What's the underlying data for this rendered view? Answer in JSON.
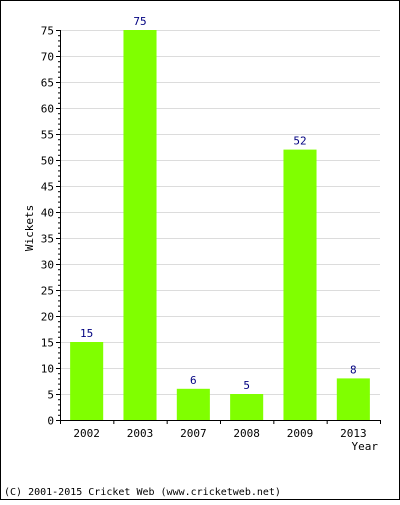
{
  "chart_data": {
    "type": "bar",
    "categories": [
      "2002",
      "2003",
      "2007",
      "2008",
      "2009",
      "2013"
    ],
    "values": [
      15,
      75,
      6,
      5,
      52,
      8
    ],
    "title": "",
    "xlabel": "Year",
    "ylabel": "Wickets",
    "ylim": [
      0,
      75
    ],
    "ytick_step": 5,
    "grid": true,
    "legend": "none",
    "bar_color": "#80ff00",
    "label_color": "#000080"
  },
  "footer": {
    "copyright": "(C) 2001-2015 Cricket Web (www.cricketweb.net)"
  }
}
